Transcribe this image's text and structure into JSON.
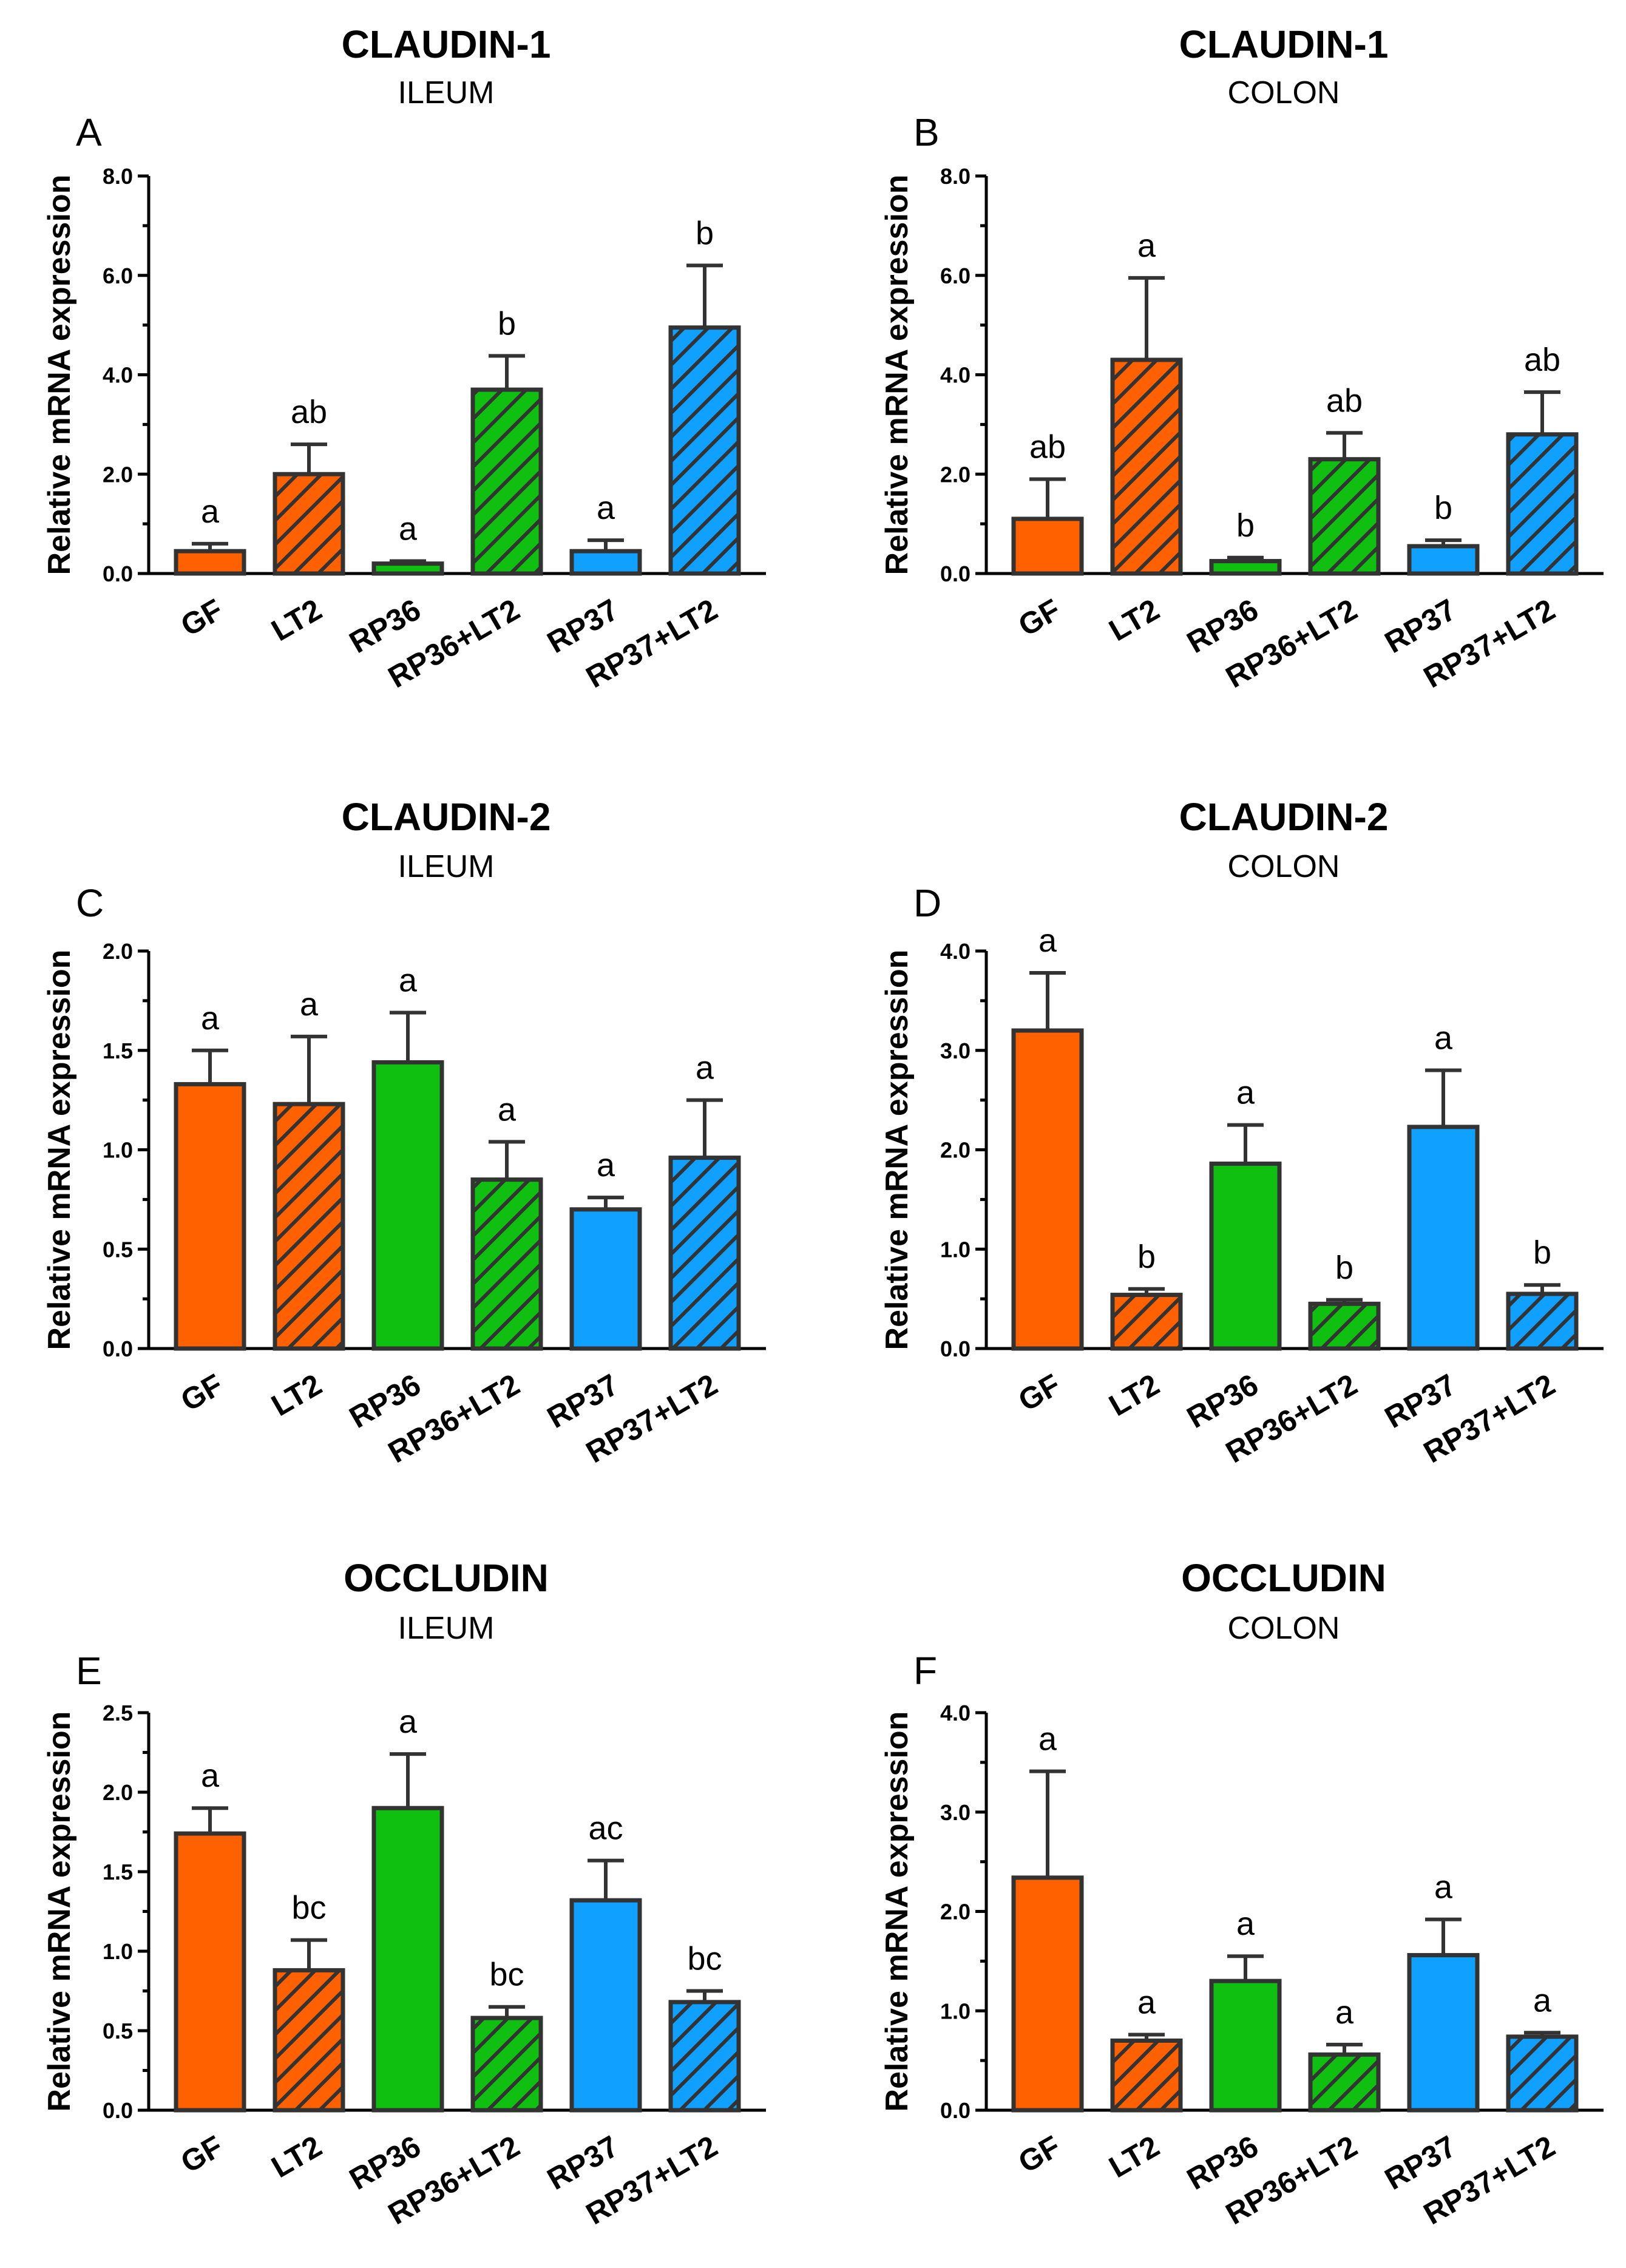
{
  "colors": {
    "orange": "#ff6000",
    "green": "#10c010",
    "blue": "#10a0ff",
    "outline": "#333333"
  },
  "chart_data": [
    {
      "type": "bar",
      "panel": "A",
      "title": "CLAUDIN-1",
      "subtitle": "ILEUM",
      "xlabel": "",
      "ylabel": "Relative mRNA expression",
      "ylim": [
        0,
        8
      ],
      "yticks": [
        "0.0",
        "2.0",
        "4.0",
        "6.0",
        "8.0"
      ],
      "categories": [
        "GF",
        "LT2",
        "RP36",
        "RP36+LT2",
        "RP37",
        "RP37+LT2"
      ],
      "values": [
        0.45,
        2.0,
        0.2,
        3.7,
        0.45,
        4.95
      ],
      "errors": [
        0.15,
        0.6,
        0.05,
        0.68,
        0.22,
        1.25
      ],
      "significance": [
        "a",
        "ab",
        "a",
        "b",
        "a",
        "b"
      ]
    },
    {
      "type": "bar",
      "panel": "B",
      "title": "CLAUDIN-1",
      "subtitle": "COLON",
      "xlabel": "",
      "ylabel": "Relative mRNA expression",
      "ylim": [
        0,
        8
      ],
      "yticks": [
        "0.0",
        "2.0",
        "4.0",
        "6.0",
        "8.0"
      ],
      "categories": [
        "GF",
        "LT2",
        "RP36",
        "RP36+LT2",
        "RP37",
        "RP37+LT2"
      ],
      "values": [
        1.1,
        4.3,
        0.25,
        2.3,
        0.55,
        2.8
      ],
      "errors": [
        0.8,
        1.65,
        0.07,
        0.53,
        0.12,
        0.85
      ],
      "significance": [
        "ab",
        "a",
        "b",
        "ab",
        "b",
        "ab"
      ]
    },
    {
      "type": "bar",
      "panel": "C",
      "title": "CLAUDIN-2",
      "subtitle": "ILEUM",
      "xlabel": "",
      "ylabel": "Relative mRNA expression",
      "ylim": [
        0,
        2
      ],
      "yticks": [
        "0.0",
        "0.5",
        "1.0",
        "1.5",
        "2.0"
      ],
      "categories": [
        "GF",
        "LT2",
        "RP36",
        "RP36+LT2",
        "RP37",
        "RP37+LT2"
      ],
      "values": [
        1.33,
        1.23,
        1.44,
        0.85,
        0.7,
        0.96
      ],
      "errors": [
        0.17,
        0.34,
        0.25,
        0.19,
        0.06,
        0.29
      ],
      "significance": [
        "a",
        "a",
        "a",
        "a",
        "a",
        "a"
      ]
    },
    {
      "type": "bar",
      "panel": "D",
      "title": "CLAUDIN-2",
      "subtitle": "COLON",
      "xlabel": "",
      "ylabel": "Relative mRNA expression",
      "ylim": [
        0,
        4
      ],
      "yticks": [
        "0.0",
        "1.0",
        "2.0",
        "3.0",
        "4.0"
      ],
      "categories": [
        "GF",
        "LT2",
        "RP36",
        "RP36+LT2",
        "RP37",
        "RP37+LT2"
      ],
      "values": [
        3.2,
        0.54,
        1.86,
        0.45,
        2.23,
        0.55
      ],
      "errors": [
        0.58,
        0.06,
        0.39,
        0.04,
        0.57,
        0.09
      ],
      "significance": [
        "a",
        "b",
        "a",
        "b",
        "a",
        "b"
      ]
    },
    {
      "type": "bar",
      "panel": "E",
      "title": "OCCLUDIN",
      "subtitle": "ILEUM",
      "xlabel": "",
      "ylabel": "Relative mRNA expression",
      "ylim": [
        0,
        2.5
      ],
      "yticks": [
        "0.0",
        "0.5",
        "1.0",
        "1.5",
        "2.0",
        "2.5"
      ],
      "categories": [
        "GF",
        "LT2",
        "RP36",
        "RP36+LT2",
        "RP37",
        "RP37+LT2"
      ],
      "values": [
        1.74,
        0.88,
        1.9,
        0.58,
        1.32,
        0.68
      ],
      "errors": [
        0.16,
        0.19,
        0.34,
        0.07,
        0.25,
        0.07
      ],
      "significance": [
        "a",
        "bc",
        "a",
        "bc",
        "ac",
        "bc"
      ]
    },
    {
      "type": "bar",
      "panel": "F",
      "title": "OCCLUDIN",
      "subtitle": "COLON",
      "xlabel": "",
      "ylabel": "Relative mRNA expression",
      "ylim": [
        0,
        4
      ],
      "yticks": [
        "0.0",
        "1.0",
        "2.0",
        "3.0",
        "4.0"
      ],
      "categories": [
        "GF",
        "LT2",
        "RP36",
        "RP36+LT2",
        "RP37",
        "RP37+LT2"
      ],
      "values": [
        2.34,
        0.7,
        1.3,
        0.56,
        1.56,
        0.74
      ],
      "errors": [
        1.07,
        0.06,
        0.25,
        0.1,
        0.36,
        0.04
      ],
      "significance": [
        "a",
        "a",
        "a",
        "a",
        "a",
        "a"
      ]
    }
  ]
}
